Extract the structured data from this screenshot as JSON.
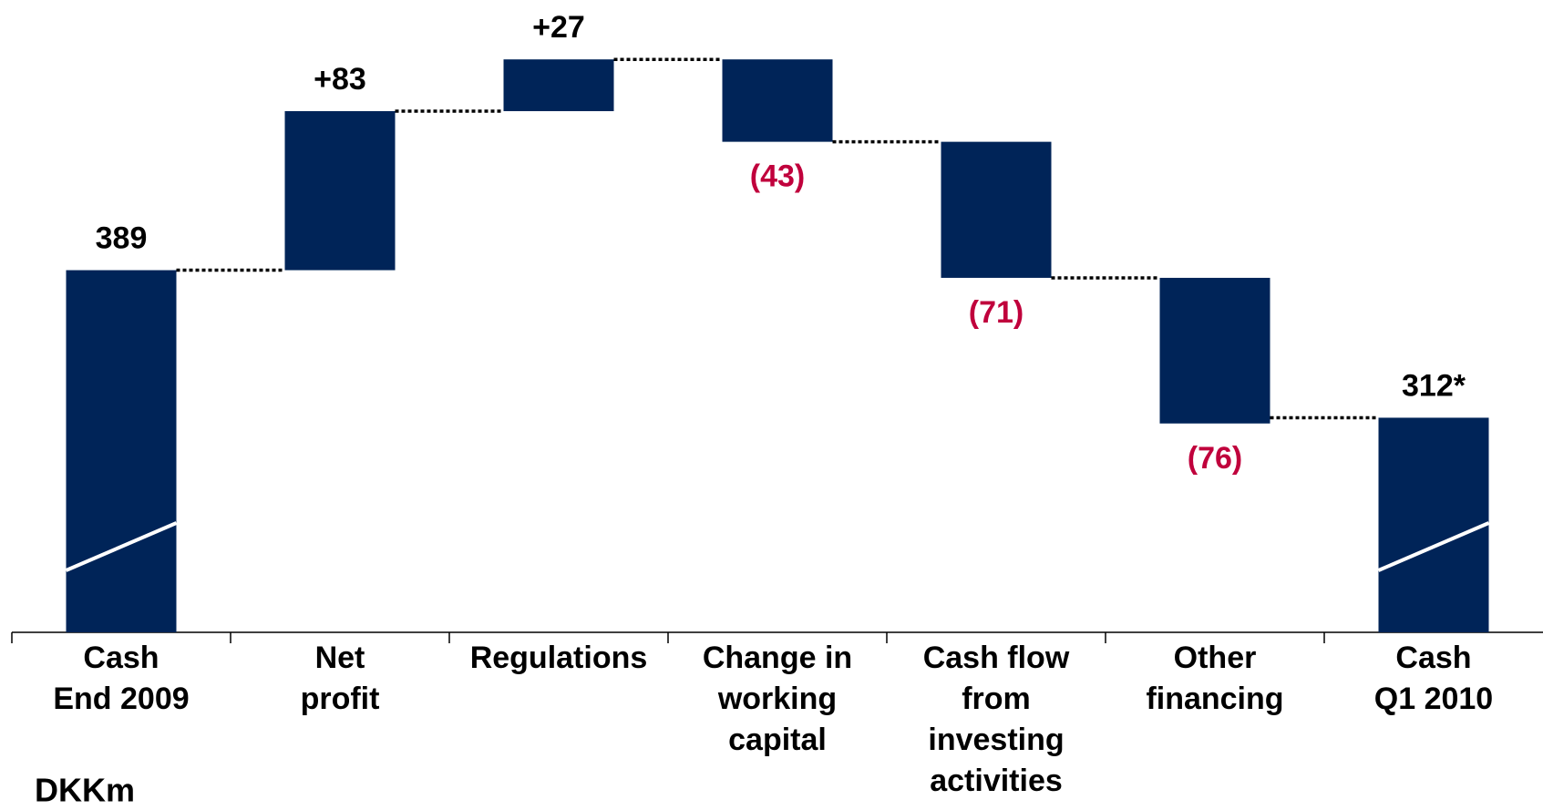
{
  "chart_data": {
    "type": "waterfall",
    "y_label": "DKKm",
    "categories": [
      [
        "Cash",
        "End 2009"
      ],
      [
        "Net",
        "profit"
      ],
      [
        "Regulations"
      ],
      [
        "Change in",
        "working",
        "capital"
      ],
      [
        "Cash flow",
        "from",
        "investing",
        "activities"
      ],
      [
        "Other",
        "financing"
      ],
      [
        "Cash",
        "Q1 2010"
      ]
    ],
    "values": [
      389,
      83,
      27,
      -43,
      -71,
      -76,
      312
    ],
    "value_labels": [
      "389",
      "+83",
      "+27",
      "(43)",
      "(71)",
      "(76)",
      "312*"
    ],
    "measure": [
      "absolute",
      "relative",
      "relative",
      "relative",
      "relative",
      "relative",
      "absolute"
    ],
    "color": "#002458",
    "negative_label_color": "#c0003c",
    "label_color": "#000000",
    "broken_axis": true,
    "ylim": [
      200,
      530
    ]
  }
}
